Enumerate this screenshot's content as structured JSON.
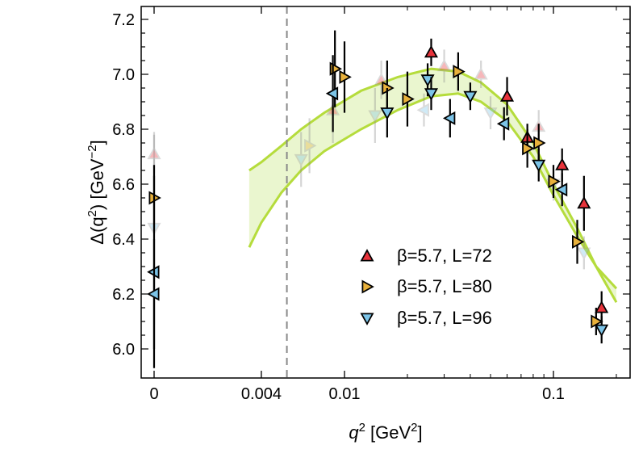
{
  "chart_data": {
    "type": "scatter",
    "x_scale": "log with zero point",
    "xlabel": {
      "base": "q",
      "sup": "2",
      "unit_prefix": "[GeV",
      "unit_sup": "2",
      "unit_suffix": "]"
    },
    "ylabel": {
      "text": "Δ(q",
      "sup1": "2",
      "mid": ") [GeV",
      "sup2": "−2",
      "end": "]"
    },
    "x_ticks": [
      {
        "value": 0,
        "label": "0"
      },
      {
        "value": 0.004,
        "label": "0.004"
      },
      {
        "value": 0.01,
        "label": "0.01"
      },
      {
        "value": 0.1,
        "label": "0.1"
      }
    ],
    "y_ticks": [
      {
        "value": 6.0,
        "label": "6.0"
      },
      {
        "value": 6.2,
        "label": "6.2"
      },
      {
        "value": 6.4,
        "label": "6.4"
      },
      {
        "value": 6.6,
        "label": "6.6"
      },
      {
        "value": 6.8,
        "label": "6.8"
      },
      {
        "value": 7.0,
        "label": "7.0"
      },
      {
        "value": 7.2,
        "label": "7.2"
      }
    ],
    "ylim": [
      5.93,
      7.25
    ],
    "vline": 0.0053,
    "band": {
      "color": "#b5dc3c",
      "fill": "#eaf6cf",
      "upper": [
        [
          0.0035,
          6.65
        ],
        [
          0.004,
          6.68
        ],
        [
          0.005,
          6.74
        ],
        [
          0.0062,
          6.8
        ],
        [
          0.008,
          6.86
        ],
        [
          0.012,
          6.94
        ],
        [
          0.018,
          6.99
        ],
        [
          0.026,
          7.02
        ],
        [
          0.035,
          7.01
        ],
        [
          0.045,
          6.97
        ],
        [
          0.06,
          6.89
        ],
        [
          0.08,
          6.75
        ],
        [
          0.1,
          6.6
        ],
        [
          0.13,
          6.44
        ],
        [
          0.16,
          6.3
        ],
        [
          0.2,
          6.17
        ]
      ],
      "lower": [
        [
          0.0035,
          6.37
        ],
        [
          0.004,
          6.46
        ],
        [
          0.005,
          6.57
        ],
        [
          0.0062,
          6.65
        ],
        [
          0.008,
          6.72
        ],
        [
          0.012,
          6.8
        ],
        [
          0.018,
          6.87
        ],
        [
          0.026,
          6.92
        ],
        [
          0.035,
          6.93
        ],
        [
          0.045,
          6.9
        ],
        [
          0.06,
          6.83
        ],
        [
          0.08,
          6.7
        ],
        [
          0.1,
          6.56
        ],
        [
          0.13,
          6.41
        ],
        [
          0.16,
          6.3
        ],
        [
          0.2,
          6.22
        ]
      ]
    },
    "series": [
      {
        "name": "β=5.7, L=72",
        "marker": "triangle-up",
        "color": "#e8333b",
        "points": [
          {
            "x": 0,
            "y": 6.71,
            "err": 0.07,
            "faded": true
          },
          {
            "x": 0.0088,
            "y": 6.87,
            "err": 0.12,
            "faded": true
          },
          {
            "x": 0.015,
            "y": 6.98,
            "err": 0.07,
            "faded": true
          },
          {
            "x": 0.026,
            "y": 7.08,
            "err": 0.05,
            "faded": false
          },
          {
            "x": 0.03,
            "y": 7.03,
            "err": 0.06,
            "faded": true
          },
          {
            "x": 0.045,
            "y": 7.0,
            "err": 0.05,
            "faded": true
          },
          {
            "x": 0.06,
            "y": 6.92,
            "err": 0.07,
            "faded": false
          },
          {
            "x": 0.075,
            "y": 6.77,
            "err": 0.05,
            "faded": false
          },
          {
            "x": 0.085,
            "y": 6.81,
            "err": 0.06,
            "faded": true
          },
          {
            "x": 0.11,
            "y": 6.67,
            "err": 0.06,
            "faded": false
          },
          {
            "x": 0.14,
            "y": 6.53,
            "err": 0.1,
            "faded": false
          },
          {
            "x": 0.17,
            "y": 6.15,
            "err": 0.06,
            "faded": false
          }
        ]
      },
      {
        "name": "β=5.7, L=80",
        "marker": "triangle-right",
        "color": "#e8b13c",
        "points": [
          {
            "x": 0,
            "y": 6.55,
            "err": 0.12,
            "faded": false
          },
          {
            "x": 0.0068,
            "y": 6.74,
            "err": 0.1,
            "faded": true
          },
          {
            "x": 0.009,
            "y": 7.02,
            "err": 0.14,
            "faded": false
          },
          {
            "x": 0.01,
            "y": 6.99,
            "err": 0.13,
            "faded": false
          },
          {
            "x": 0.016,
            "y": 6.95,
            "err": 0.1,
            "faded": false
          },
          {
            "x": 0.02,
            "y": 6.91,
            "err": 0.1,
            "faded": false
          },
          {
            "x": 0.035,
            "y": 7.01,
            "err": 0.07,
            "faded": false
          },
          {
            "x": 0.075,
            "y": 6.73,
            "err": 0.07,
            "faded": false
          },
          {
            "x": 0.085,
            "y": 6.75,
            "err": 0.07,
            "faded": false
          },
          {
            "x": 0.1,
            "y": 6.61,
            "err": 0.06,
            "faded": false
          },
          {
            "x": 0.13,
            "y": 6.39,
            "err": 0.08,
            "faded": false
          },
          {
            "x": 0.16,
            "y": 6.1,
            "err": 0.05,
            "faded": false
          }
        ]
      },
      {
        "name": "β=5.7, L=96",
        "marker": "triangle-down",
        "color": "#7cc4e8",
        "points": [
          {
            "x": 0,
            "y": 6.44,
            "err": 0.35,
            "faded": true
          },
          {
            "x": 0,
            "y": 6.28,
            "err": 0.35,
            "faded": false
          },
          {
            "x": 0,
            "y": 6.2,
            "err": 0.2,
            "faded": false
          },
          {
            "x": 0.0062,
            "y": 6.69,
            "err": 0.1,
            "faded": true
          },
          {
            "x": 0.0088,
            "y": 6.93,
            "err": 0.14,
            "faded": false
          },
          {
            "x": 0.014,
            "y": 6.85,
            "err": 0.1,
            "faded": true
          },
          {
            "x": 0.016,
            "y": 6.86,
            "err": 0.09,
            "faded": false
          },
          {
            "x": 0.024,
            "y": 6.87,
            "err": 0.06,
            "faded": true
          },
          {
            "x": 0.025,
            "y": 6.98,
            "err": 0.06,
            "faded": false
          },
          {
            "x": 0.026,
            "y": 6.93,
            "err": 0.06,
            "faded": false
          },
          {
            "x": 0.032,
            "y": 6.84,
            "err": 0.07,
            "faded": false
          },
          {
            "x": 0.04,
            "y": 6.92,
            "err": 0.05,
            "faded": false
          },
          {
            "x": 0.05,
            "y": 6.86,
            "err": 0.06,
            "faded": true
          },
          {
            "x": 0.058,
            "y": 6.82,
            "err": 0.06,
            "faded": false
          },
          {
            "x": 0.085,
            "y": 6.67,
            "err": 0.06,
            "faded": false
          },
          {
            "x": 0.1,
            "y": 6.6,
            "err": 0.06,
            "faded": true
          },
          {
            "x": 0.11,
            "y": 6.58,
            "err": 0.06,
            "faded": false
          },
          {
            "x": 0.14,
            "y": 6.35,
            "err": 0.06,
            "faded": true
          },
          {
            "x": 0.17,
            "y": 6.07,
            "err": 0.05,
            "faded": false
          }
        ]
      }
    ],
    "legend": {
      "position": "bottom-right",
      "entries": [
        "β=5.7, L=72",
        "β=5.7, L=80",
        "β=5.7, L=96"
      ]
    }
  }
}
